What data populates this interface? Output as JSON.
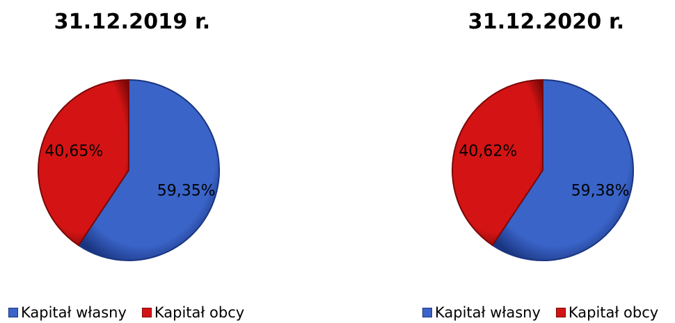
{
  "colors": {
    "blue": "#3a64c8",
    "blue_dark": "#1a3580",
    "red": "#d41414",
    "red_dark": "#7a0808"
  },
  "legend": {
    "item_1": "Kapitał własny",
    "item_2": "Kapitał obcy"
  },
  "chart_data": [
    {
      "type": "pie",
      "title": "31.12.2019 r.",
      "categories": [
        "Kapitał własny",
        "Kapitał obcy"
      ],
      "values": [
        59.35,
        40.65
      ],
      "labels": [
        "59,35%",
        "40,65%"
      ],
      "colors": [
        "#3a64c8",
        "#d41414"
      ],
      "legend_position": "bottom"
    },
    {
      "type": "pie",
      "title": "31.12.2020 r.",
      "categories": [
        "Kapitał własny",
        "Kapitał obcy"
      ],
      "values": [
        59.38,
        40.62
      ],
      "labels": [
        "59,38%",
        "40,62%"
      ],
      "colors": [
        "#3a64c8",
        "#d41414"
      ],
      "legend_position": "bottom"
    }
  ]
}
